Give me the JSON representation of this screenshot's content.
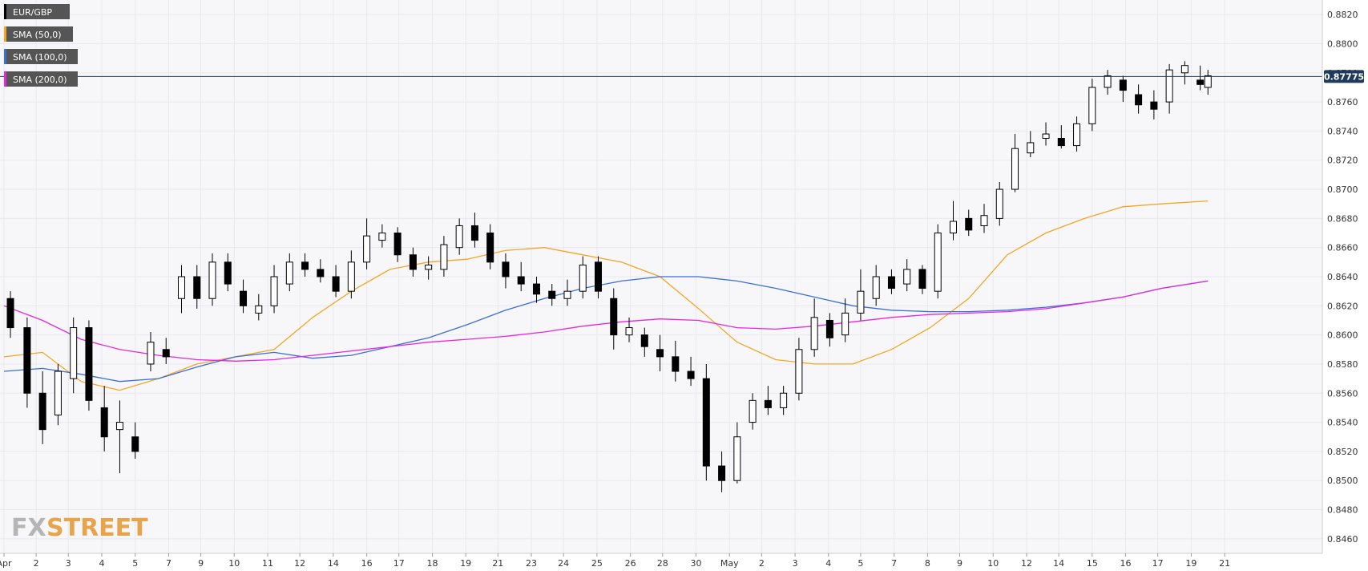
{
  "watermark": {
    "fx": "FX",
    "street": "STREET"
  },
  "colors": {
    "grid": "#e8e8ee",
    "plot_bg": "#f7f7fa",
    "up_body": "#ffffff",
    "down_body": "#000000",
    "wick": "#000000",
    "sma50": "#f5a623",
    "sma100": "#3a6fd8",
    "sma200": "#e826e0",
    "current_line": "#1e3a5f",
    "price_label_bg": "#1e3a5f"
  },
  "chart_data": {
    "type": "candlestick",
    "title": "",
    "xlabel": "",
    "ylabel": "",
    "legend": [
      {
        "label": "EUR/GBP",
        "color": "#000000"
      },
      {
        "label": "SMA (50,0)",
        "color": "#f5a623"
      },
      {
        "label": "SMA (100,0)",
        "color": "#3a6fd8"
      },
      {
        "label": "SMA (200,0)",
        "color": "#e826e0"
      }
    ],
    "legend_position": "top-left",
    "grid": true,
    "ylim": [
      0.845,
      0.883
    ],
    "y_ticks": [
      0.846,
      0.848,
      0.85,
      0.852,
      0.854,
      0.856,
      0.858,
      0.86,
      0.862,
      0.864,
      0.866,
      0.868,
      0.87,
      0.872,
      0.874,
      0.876,
      0.878,
      0.88,
      0.882
    ],
    "y_tick_labels": [
      "0.8460",
      "0.8480",
      "0.8500",
      "0.8520",
      "0.8540",
      "0.8560",
      "0.8580",
      "0.8600",
      "0.8620",
      "0.8640",
      "0.8660",
      "0.8680",
      "0.8700",
      "0.8720",
      "0.8740",
      "0.8760",
      "0.8780",
      "0.8800",
      "0.8820"
    ],
    "x_tick_labels": [
      "Apr",
      "2",
      "3",
      "4",
      "5",
      "7",
      "9",
      "10",
      "11",
      "12",
      "14",
      "16",
      "17",
      "18",
      "19",
      "21",
      "23",
      "24",
      "25",
      "26",
      "28",
      "30",
      "May",
      "2",
      "3",
      "4",
      "5",
      "7",
      "8",
      "9",
      "10",
      "12",
      "14",
      "15",
      "16",
      "17",
      "19",
      "21"
    ],
    "x_tick_positions": [
      0.0,
      0.025,
      0.05,
      0.076,
      0.102,
      0.128,
      0.153,
      0.179,
      0.205,
      0.23,
      0.256,
      0.282,
      0.307,
      0.333,
      0.359,
      0.384,
      0.41,
      0.435,
      0.461,
      0.487,
      0.512,
      0.538,
      0.564,
      0.589,
      0.615,
      0.641,
      0.666,
      0.692,
      0.718,
      0.743,
      0.769,
      0.795,
      0.82,
      0.846,
      0.872,
      0.897,
      0.923,
      0.949
    ],
    "x_range": [
      0,
      1
    ],
    "current_price": 0.87775,
    "current_price_label": "0.87775",
    "candles": {
      "x": [
        0.005,
        0.018,
        0.03,
        0.042,
        0.054,
        0.066,
        0.078,
        0.09,
        0.102,
        0.114,
        0.126,
        0.138,
        0.15,
        0.162,
        0.174,
        0.186,
        0.198,
        0.21,
        0.222,
        0.234,
        0.246,
        0.258,
        0.27,
        0.282,
        0.294,
        0.306,
        0.318,
        0.33,
        0.342,
        0.354,
        0.366,
        0.378,
        0.39,
        0.402,
        0.414,
        0.426,
        0.438,
        0.45,
        0.462,
        0.474,
        0.486,
        0.498,
        0.51,
        0.522,
        0.534,
        0.546,
        0.558,
        0.57,
        0.582,
        0.594,
        0.606,
        0.618,
        0.63,
        0.642,
        0.654,
        0.666,
        0.678,
        0.69,
        0.702,
        0.714,
        0.726,
        0.738,
        0.75,
        0.762,
        0.774,
        0.786,
        0.798,
        0.81,
        0.822,
        0.834,
        0.846,
        0.858,
        0.87,
        0.882,
        0.894,
        0.906,
        0.918,
        0.93,
        0.936
      ],
      "open": [
        0.8625,
        0.8605,
        0.856,
        0.8545,
        0.857,
        0.8605,
        0.855,
        0.8535,
        0.853,
        0.858,
        0.859,
        0.8625,
        0.864,
        0.8625,
        0.865,
        0.863,
        0.8615,
        0.862,
        0.8635,
        0.865,
        0.8645,
        0.864,
        0.863,
        0.865,
        0.8665,
        0.867,
        0.8655,
        0.8645,
        0.8645,
        0.866,
        0.8675,
        0.867,
        0.865,
        0.864,
        0.8635,
        0.863,
        0.8625,
        0.863,
        0.865,
        0.8625,
        0.86,
        0.86,
        0.859,
        0.8585,
        0.8575,
        0.857,
        0.851,
        0.85,
        0.854,
        0.8555,
        0.855,
        0.856,
        0.859,
        0.861,
        0.86,
        0.8615,
        0.8625,
        0.864,
        0.8635,
        0.8645,
        0.863,
        0.867,
        0.868,
        0.8675,
        0.868,
        0.87,
        0.8725,
        0.8735,
        0.8735,
        0.873,
        0.8745,
        0.877,
        0.8775,
        0.8765,
        0.876,
        0.876,
        0.878,
        0.8775,
        0.877
      ],
      "close": [
        0.8605,
        0.856,
        0.8535,
        0.8575,
        0.8605,
        0.8555,
        0.853,
        0.854,
        0.852,
        0.8595,
        0.8585,
        0.864,
        0.8625,
        0.865,
        0.8635,
        0.862,
        0.862,
        0.864,
        0.865,
        0.8645,
        0.864,
        0.863,
        0.865,
        0.8668,
        0.867,
        0.8655,
        0.8645,
        0.8648,
        0.8662,
        0.8675,
        0.8665,
        0.865,
        0.864,
        0.8635,
        0.8628,
        0.8625,
        0.863,
        0.8648,
        0.863,
        0.86,
        0.8605,
        0.8592,
        0.8585,
        0.8575,
        0.857,
        0.851,
        0.85,
        0.853,
        0.8555,
        0.855,
        0.856,
        0.859,
        0.8612,
        0.8598,
        0.8615,
        0.863,
        0.864,
        0.8632,
        0.8645,
        0.8632,
        0.867,
        0.8678,
        0.8672,
        0.8682,
        0.87,
        0.8728,
        0.8732,
        0.8738,
        0.873,
        0.8745,
        0.877,
        0.8778,
        0.8768,
        0.8758,
        0.8755,
        0.8782,
        0.8785,
        0.8772,
        0.8778
      ],
      "high": [
        0.863,
        0.8612,
        0.8575,
        0.858,
        0.8612,
        0.861,
        0.8565,
        0.8555,
        0.854,
        0.8602,
        0.8598,
        0.8648,
        0.8648,
        0.8656,
        0.8656,
        0.8638,
        0.8628,
        0.8648,
        0.8656,
        0.8656,
        0.8652,
        0.8648,
        0.8658,
        0.868,
        0.8676,
        0.8674,
        0.866,
        0.8654,
        0.8668,
        0.868,
        0.8684,
        0.8676,
        0.8656,
        0.865,
        0.864,
        0.8635,
        0.8638,
        0.8654,
        0.8654,
        0.8632,
        0.8612,
        0.8605,
        0.86,
        0.8596,
        0.8585,
        0.858,
        0.852,
        0.854,
        0.856,
        0.8565,
        0.8565,
        0.8598,
        0.8625,
        0.8615,
        0.8625,
        0.8645,
        0.8648,
        0.8645,
        0.8652,
        0.8648,
        0.8676,
        0.8692,
        0.8686,
        0.869,
        0.8705,
        0.8738,
        0.874,
        0.8746,
        0.8744,
        0.875,
        0.8776,
        0.8782,
        0.8778,
        0.8772,
        0.8768,
        0.8786,
        0.8788,
        0.8785,
        0.8782
      ],
      "low": [
        0.8598,
        0.855,
        0.8525,
        0.8538,
        0.856,
        0.8548,
        0.852,
        0.8505,
        0.8515,
        0.8575,
        0.858,
        0.8615,
        0.8618,
        0.862,
        0.863,
        0.8615,
        0.861,
        0.8615,
        0.863,
        0.864,
        0.8636,
        0.8626,
        0.8625,
        0.8645,
        0.866,
        0.865,
        0.864,
        0.8638,
        0.864,
        0.8655,
        0.866,
        0.8645,
        0.8632,
        0.863,
        0.8622,
        0.862,
        0.862,
        0.8625,
        0.8625,
        0.859,
        0.8595,
        0.8585,
        0.8575,
        0.8568,
        0.8565,
        0.85,
        0.8492,
        0.8498,
        0.8535,
        0.8545,
        0.8545,
        0.8555,
        0.8585,
        0.8592,
        0.8595,
        0.861,
        0.862,
        0.8628,
        0.863,
        0.8628,
        0.8625,
        0.8665,
        0.8668,
        0.867,
        0.8675,
        0.8698,
        0.8722,
        0.873,
        0.8728,
        0.8726,
        0.874,
        0.8765,
        0.876,
        0.8752,
        0.8748,
        0.8752,
        0.8772,
        0.8768,
        0.8765
      ]
    },
    "series": [
      {
        "name": "SMA (50,0)",
        "x": [
          0.0,
          0.03,
          0.06,
          0.09,
          0.12,
          0.15,
          0.18,
          0.21,
          0.24,
          0.27,
          0.3,
          0.33,
          0.36,
          0.39,
          0.42,
          0.45,
          0.48,
          0.51,
          0.54,
          0.57,
          0.6,
          0.63,
          0.66,
          0.69,
          0.72,
          0.75,
          0.78,
          0.81,
          0.84,
          0.87,
          0.9,
          0.936
        ],
        "values": [
          0.8585,
          0.8588,
          0.8568,
          0.8562,
          0.857,
          0.858,
          0.8585,
          0.859,
          0.8612,
          0.863,
          0.8645,
          0.865,
          0.8652,
          0.8658,
          0.866,
          0.8655,
          0.865,
          0.864,
          0.8618,
          0.8595,
          0.8583,
          0.858,
          0.858,
          0.859,
          0.8605,
          0.8625,
          0.8655,
          0.867,
          0.868,
          0.8688,
          0.869,
          0.8692
        ]
      },
      {
        "name": "SMA (100,0)",
        "x": [
          0.0,
          0.03,
          0.06,
          0.09,
          0.12,
          0.15,
          0.18,
          0.21,
          0.24,
          0.27,
          0.3,
          0.33,
          0.36,
          0.39,
          0.42,
          0.45,
          0.48,
          0.51,
          0.54,
          0.57,
          0.6,
          0.63,
          0.66,
          0.69,
          0.72,
          0.75,
          0.78,
          0.81,
          0.84,
          0.87,
          0.9,
          0.936
        ],
        "values": [
          0.8575,
          0.8577,
          0.8573,
          0.8568,
          0.857,
          0.8578,
          0.8585,
          0.8588,
          0.8584,
          0.8586,
          0.8592,
          0.8598,
          0.8607,
          0.8617,
          0.8625,
          0.8632,
          0.8637,
          0.864,
          0.864,
          0.8637,
          0.8632,
          0.8626,
          0.862,
          0.8617,
          0.8616,
          0.8616,
          0.8617,
          0.8619,
          0.8622,
          0.8626,
          0.8632,
          0.8637
        ]
      },
      {
        "name": "SMA (200,0)",
        "x": [
          0.0,
          0.03,
          0.06,
          0.09,
          0.12,
          0.15,
          0.18,
          0.21,
          0.24,
          0.27,
          0.3,
          0.33,
          0.36,
          0.39,
          0.42,
          0.45,
          0.48,
          0.51,
          0.54,
          0.57,
          0.6,
          0.63,
          0.66,
          0.69,
          0.72,
          0.75,
          0.78,
          0.81,
          0.84,
          0.87,
          0.9,
          0.936
        ],
        "values": [
          0.862,
          0.861,
          0.8597,
          0.859,
          0.8586,
          0.8583,
          0.8582,
          0.8583,
          0.8586,
          0.8589,
          0.8592,
          0.8595,
          0.8597,
          0.8599,
          0.8602,
          0.8606,
          0.8609,
          0.8611,
          0.861,
          0.8605,
          0.8604,
          0.8606,
          0.8609,
          0.8612,
          0.8614,
          0.8615,
          0.8616,
          0.8618,
          0.8622,
          0.8626,
          0.8632,
          0.8637
        ]
      }
    ]
  }
}
